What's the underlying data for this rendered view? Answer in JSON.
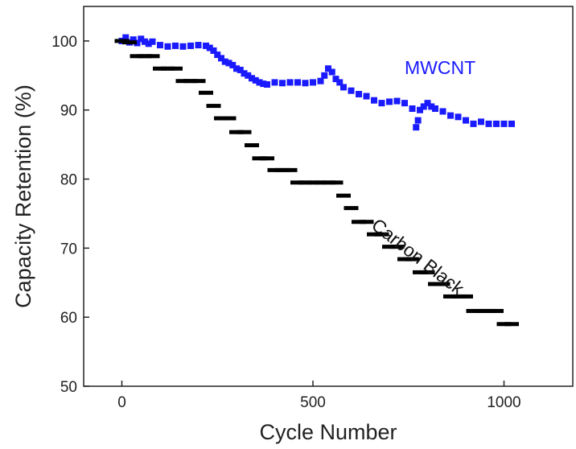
{
  "chart_data": {
    "type": "scatter",
    "title": "",
    "xlabel": "Cycle Number",
    "ylabel": "Capacity Retention (%)",
    "xlim": [
      -100,
      1180
    ],
    "ylim": [
      50,
      105
    ],
    "xticks": [
      0,
      500,
      1000
    ],
    "yticks": [
      50,
      60,
      70,
      80,
      90,
      100
    ],
    "grid": false,
    "legend": "none",
    "annotations": [
      {
        "text": "MWCNT",
        "x": 740,
        "y": 95.2,
        "color": "#1a1aff",
        "rotate": 0
      },
      {
        "text": "Carbon Black",
        "x": 650,
        "y": 73,
        "color": "#111111",
        "rotate": 38
      }
    ],
    "series": [
      {
        "color": "#1a1aff",
        "marker": "square",
        "x": [
          0,
          10,
          20,
          30,
          40,
          50,
          60,
          70,
          80,
          100,
          120,
          140,
          160,
          180,
          200,
          220,
          230,
          240,
          250,
          260,
          270,
          280,
          290,
          300,
          310,
          320,
          330,
          340,
          350,
          360,
          370,
          380,
          400,
          420,
          440,
          460,
          480,
          500,
          520,
          530,
          540,
          550,
          560,
          570,
          580,
          600,
          620,
          640,
          660,
          680,
          700,
          720,
          740,
          760,
          770,
          775,
          780,
          790,
          800,
          810,
          820,
          840,
          860,
          880,
          900,
          920,
          940,
          960,
          980,
          1000,
          1020
        ],
        "y": [
          100,
          100.5,
          99.8,
          100.2,
          99.7,
          100.3,
          99.9,
          99.6,
          99.9,
          99.4,
          99.2,
          99.3,
          99.2,
          99.3,
          99.4,
          99.3,
          99.0,
          98.6,
          98.0,
          97.5,
          97.0,
          96.8,
          96.5,
          96.0,
          95.8,
          95.3,
          95.0,
          94.6,
          94.3,
          94.0,
          93.8,
          93.7,
          94.0,
          93.9,
          94.0,
          94.0,
          93.9,
          94.0,
          94.2,
          95.0,
          96.0,
          95.5,
          94.5,
          94.0,
          93.3,
          92.8,
          92.3,
          92.0,
          91.4,
          91.0,
          91.2,
          91.3,
          91.0,
          90.2,
          87.5,
          88.5,
          90.0,
          90.5,
          91.0,
          90.5,
          90.2,
          89.8,
          89.2,
          89.0,
          88.5,
          88.0,
          88.3,
          88.0,
          88.0,
          88.0,
          88.0
        ]
      },
      {
        "color": "#000000",
        "marker": "dash",
        "x": [
          0,
          20,
          40,
          60,
          80,
          100,
          120,
          140,
          160,
          180,
          200,
          220,
          240,
          260,
          280,
          300,
          320,
          340,
          360,
          380,
          400,
          420,
          440,
          460,
          480,
          500,
          520,
          540,
          560,
          580,
          600,
          620,
          640,
          660,
          680,
          700,
          720,
          740,
          760,
          780,
          800,
          820,
          840,
          860,
          880,
          900,
          920,
          940,
          960,
          980,
          1000,
          1020
        ],
        "y": [
          100,
          99.8,
          97.8,
          97.8,
          97.8,
          96.0,
          96.0,
          96.0,
          94.2,
          94.2,
          94.2,
          92.5,
          90.6,
          88.8,
          88.8,
          86.8,
          86.8,
          84.9,
          83.0,
          83.0,
          81.3,
          81.3,
          81.3,
          79.5,
          79.5,
          79.5,
          79.5,
          79.5,
          79.5,
          77.6,
          75.8,
          73.8,
          73.8,
          72.0,
          72.0,
          70.2,
          70.2,
          68.4,
          68.4,
          66.5,
          66.5,
          64.8,
          64.8,
          63.0,
          63.0,
          63.0,
          60.9,
          60.9,
          60.9,
          60.9,
          59.0,
          59.0
        ]
      }
    ]
  }
}
